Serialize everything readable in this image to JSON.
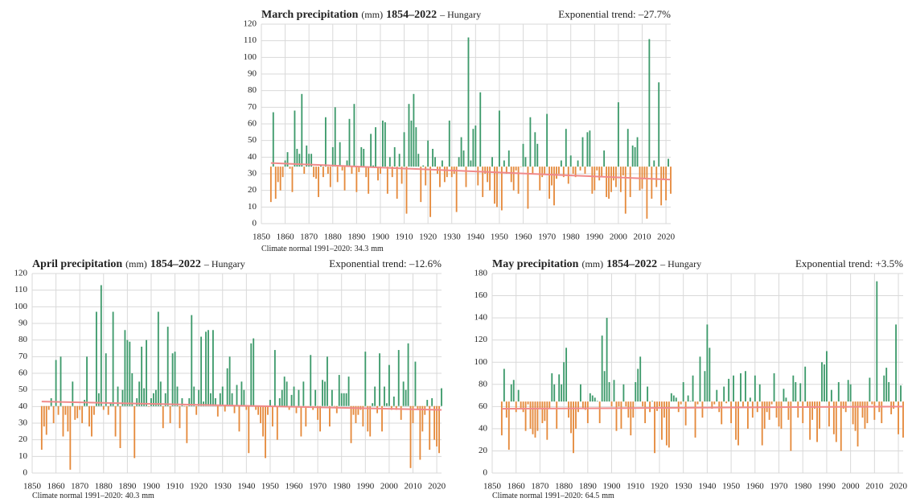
{
  "chart_data": [
    {
      "type": "bar",
      "title": "March precipitation",
      "unit": "(mm)",
      "period": "1854–2022",
      "region": "– Hungary",
      "trend_label": "Exponential trend: –27.7%",
      "trend": [
        36.5,
        26.5
      ],
      "normal_label": "Climate normal 1991–2020:",
      "normal": 34.3,
      "normal_unit": "mm",
      "above_color": "#3d9a6b",
      "below_color": "#e58a3c",
      "trend_color": "#f08a8a",
      "grid": true,
      "xlim": [
        1850,
        2022
      ],
      "xticks": [
        1850,
        1860,
        1870,
        1880,
        1890,
        1900,
        1910,
        1920,
        1930,
        1940,
        1950,
        1960,
        1970,
        1980,
        1990,
        2000,
        2010,
        2020
      ],
      "ylim": [
        0,
        120
      ],
      "yticks": [
        0,
        10,
        20,
        30,
        40,
        50,
        60,
        70,
        80,
        90,
        100,
        110,
        120
      ],
      "x": [
        1854,
        1855,
        1856,
        1857,
        1858,
        1859,
        1860,
        1861,
        1862,
        1863,
        1864,
        1865,
        1866,
        1867,
        1868,
        1869,
        1870,
        1871,
        1872,
        1873,
        1874,
        1875,
        1876,
        1877,
        1878,
        1879,
        1880,
        1881,
        1882,
        1883,
        1884,
        1885,
        1886,
        1887,
        1888,
        1889,
        1890,
        1891,
        1892,
        1893,
        1894,
        1895,
        1896,
        1897,
        1898,
        1899,
        1900,
        1901,
        1902,
        1903,
        1904,
        1905,
        1906,
        1907,
        1908,
        1909,
        1910,
        1911,
        1912,
        1913,
        1914,
        1915,
        1916,
        1917,
        1918,
        1919,
        1920,
        1921,
        1922,
        1923,
        1924,
        1925,
        1926,
        1927,
        1928,
        1929,
        1930,
        1931,
        1932,
        1933,
        1934,
        1935,
        1936,
        1937,
        1938,
        1939,
        1940,
        1941,
        1942,
        1943,
        1944,
        1945,
        1946,
        1947,
        1948,
        1949,
        1950,
        1951,
        1952,
        1953,
        1954,
        1955,
        1956,
        1957,
        1958,
        1959,
        1960,
        1961,
        1962,
        1963,
        1964,
        1965,
        1966,
        1967,
        1968,
        1969,
        1970,
        1971,
        1972,
        1973,
        1974,
        1975,
        1976,
        1977,
        1978,
        1979,
        1980,
        1981,
        1982,
        1983,
        1984,
        1985,
        1986,
        1987,
        1988,
        1989,
        1990,
        1991,
        1992,
        1993,
        1994,
        1995,
        1996,
        1997,
        1998,
        1999,
        2000,
        2001,
        2002,
        2003,
        2004,
        2005,
        2006,
        2007,
        2008,
        2009,
        2010,
        2011,
        2012,
        2013,
        2014,
        2015,
        2016,
        2017,
        2018,
        2019,
        2020,
        2021,
        2022
      ],
      "values": [
        13,
        67,
        15,
        25,
        20,
        28,
        38,
        43,
        33,
        19,
        68,
        45,
        42,
        78,
        30,
        47,
        42,
        42,
        28,
        27,
        16,
        35,
        28,
        64,
        30,
        22,
        46,
        70,
        25,
        49,
        32,
        20,
        38,
        63,
        30,
        72,
        19,
        31,
        46,
        45,
        28,
        18,
        54,
        35,
        58,
        26,
        30,
        62,
        61,
        18,
        40,
        28,
        46,
        15,
        42,
        24,
        55,
        6,
        72,
        62,
        78,
        58,
        42,
        13,
        35,
        23,
        50,
        4,
        45,
        40,
        30,
        22,
        38,
        25,
        28,
        62,
        28,
        30,
        7,
        40,
        52,
        44,
        22,
        112,
        38,
        57,
        59,
        23,
        79,
        16,
        30,
        25,
        20,
        40,
        12,
        10,
        68,
        8,
        38,
        30,
        44,
        25,
        20,
        32,
        18,
        34,
        48,
        40,
        9,
        64,
        30,
        55,
        48,
        20,
        28,
        30,
        66,
        15,
        23,
        11,
        27,
        30,
        38,
        28,
        57,
        24,
        41,
        30,
        28,
        38,
        32,
        52,
        30,
        55,
        56,
        18,
        20,
        32,
        26,
        28,
        44,
        16,
        15,
        19,
        26,
        22,
        73,
        19,
        29,
        6,
        57,
        16,
        47,
        46,
        52,
        20,
        21,
        27,
        3,
        111,
        15,
        38,
        22,
        85,
        11,
        27,
        14,
        39,
        18
      ]
    },
    {
      "type": "bar",
      "title": "April precipitation",
      "unit": "(mm)",
      "period": "1854–2022",
      "region": "– Hungary",
      "trend_label": "Exponential trend: –12.6%",
      "trend": [
        43,
        38
      ],
      "normal_label": "Climate normal 1991–2020:",
      "normal": 40.3,
      "normal_unit": "mm",
      "above_color": "#3d9a6b",
      "below_color": "#e58a3c",
      "trend_color": "#f08a8a",
      "grid": true,
      "xlim": [
        1850,
        2022
      ],
      "xticks": [
        1850,
        1860,
        1870,
        1880,
        1890,
        1900,
        1910,
        1920,
        1930,
        1940,
        1950,
        1960,
        1970,
        1980,
        1990,
        2000,
        2010,
        2020
      ],
      "ylim": [
        0,
        120
      ],
      "yticks": [
        0,
        10,
        20,
        30,
        40,
        50,
        60,
        70,
        80,
        90,
        100,
        110,
        120
      ],
      "x": [
        1854,
        1855,
        1856,
        1857,
        1858,
        1859,
        1860,
        1861,
        1862,
        1863,
        1864,
        1865,
        1866,
        1867,
        1868,
        1869,
        1870,
        1871,
        1872,
        1873,
        1874,
        1875,
        1876,
        1877,
        1878,
        1879,
        1880,
        1881,
        1882,
        1883,
        1884,
        1885,
        1886,
        1887,
        1888,
        1889,
        1890,
        1891,
        1892,
        1893,
        1894,
        1895,
        1896,
        1897,
        1898,
        1899,
        1900,
        1901,
        1902,
        1903,
        1904,
        1905,
        1906,
        1907,
        1908,
        1909,
        1910,
        1911,
        1912,
        1913,
        1914,
        1915,
        1916,
        1917,
        1918,
        1919,
        1920,
        1921,
        1922,
        1923,
        1924,
        1925,
        1926,
        1927,
        1928,
        1929,
        1930,
        1931,
        1932,
        1933,
        1934,
        1935,
        1936,
        1937,
        1938,
        1939,
        1940,
        1941,
        1942,
        1943,
        1944,
        1945,
        1946,
        1947,
        1948,
        1949,
        1950,
        1951,
        1952,
        1953,
        1954,
        1955,
        1956,
        1957,
        1958,
        1959,
        1960,
        1961,
        1962,
        1963,
        1964,
        1965,
        1966,
        1967,
        1968,
        1969,
        1970,
        1971,
        1972,
        1973,
        1974,
        1975,
        1976,
        1977,
        1978,
        1979,
        1980,
        1981,
        1982,
        1983,
        1984,
        1985,
        1986,
        1987,
        1988,
        1989,
        1990,
        1991,
        1992,
        1993,
        1994,
        1995,
        1996,
        1997,
        1998,
        1999,
        2000,
        2001,
        2002,
        2003,
        2004,
        2005,
        2006,
        2007,
        2008,
        2009,
        2010,
        2011,
        2012,
        2013,
        2014,
        2015,
        2016,
        2017,
        2018,
        2019,
        2020,
        2021,
        2022
      ],
      "values": [
        14,
        28,
        23,
        38,
        45,
        30,
        68,
        35,
        70,
        22,
        35,
        25,
        2,
        55,
        32,
        33,
        38,
        30,
        44,
        70,
        28,
        22,
        35,
        97,
        48,
        113,
        38,
        72,
        35,
        42,
        97,
        22,
        52,
        15,
        50,
        86,
        80,
        79,
        60,
        9,
        45,
        55,
        76,
        51,
        80,
        40,
        45,
        48,
        50,
        97,
        55,
        27,
        48,
        88,
        30,
        72,
        73,
        52,
        27,
        45,
        40,
        18,
        45,
        95,
        52,
        35,
        50,
        82,
        43,
        85,
        86,
        48,
        86,
        45,
        34,
        48,
        52,
        37,
        63,
        70,
        48,
        36,
        53,
        25,
        55,
        50,
        38,
        12,
        78,
        81,
        38,
        35,
        30,
        22,
        9,
        35,
        44,
        28,
        74,
        20,
        45,
        50,
        58,
        55,
        38,
        47,
        52,
        36,
        50,
        22,
        55,
        28,
        40,
        71,
        38,
        50,
        32,
        25,
        56,
        55,
        70,
        28,
        50,
        40,
        36,
        59,
        48,
        48,
        48,
        58,
        18,
        35,
        30,
        35,
        38,
        28,
        73,
        25,
        22,
        42,
        52,
        36,
        72,
        25,
        52,
        42,
        65,
        38,
        46,
        38,
        74,
        32,
        55,
        50,
        78,
        3,
        30,
        67,
        38,
        8,
        25,
        35,
        44,
        14,
        45,
        20,
        16,
        12,
        51
      ]
    },
    {
      "type": "bar",
      "title": "May precipitation",
      "unit": "(mm)",
      "period": "1854–2022",
      "region": "– Hungary",
      "trend_label": "Exponential trend: +3.5%",
      "trend": [
        58,
        60
      ],
      "normal_label": "Climate normal 1991–2020:",
      "normal": 64.5,
      "normal_unit": "mm",
      "above_color": "#3d9a6b",
      "below_color": "#e58a3c",
      "trend_color": "#f08a8a",
      "grid": true,
      "xlim": [
        1850,
        2022
      ],
      "xticks": [
        1850,
        1860,
        1870,
        1880,
        1890,
        1900,
        1910,
        1920,
        1930,
        1940,
        1950,
        1960,
        1970,
        1980,
        1990,
        2000,
        2010,
        2020
      ],
      "ylim": [
        0,
        180
      ],
      "yticks": [
        0,
        20,
        40,
        60,
        80,
        100,
        120,
        140,
        160,
        180
      ],
      "x": [
        1854,
        1855,
        1856,
        1857,
        1858,
        1859,
        1860,
        1861,
        1862,
        1863,
        1864,
        1865,
        1866,
        1867,
        1868,
        1869,
        1870,
        1871,
        1872,
        1873,
        1874,
        1875,
        1876,
        1877,
        1878,
        1879,
        1880,
        1881,
        1882,
        1883,
        1884,
        1885,
        1886,
        1887,
        1888,
        1889,
        1890,
        1891,
        1892,
        1893,
        1894,
        1895,
        1896,
        1897,
        1898,
        1899,
        1900,
        1901,
        1902,
        1903,
        1904,
        1905,
        1906,
        1907,
        1908,
        1909,
        1910,
        1911,
        1912,
        1913,
        1914,
        1915,
        1916,
        1917,
        1918,
        1919,
        1920,
        1921,
        1922,
        1923,
        1924,
        1925,
        1926,
        1927,
        1928,
        1929,
        1930,
        1931,
        1932,
        1933,
        1934,
        1935,
        1936,
        1937,
        1938,
        1939,
        1940,
        1941,
        1942,
        1943,
        1944,
        1945,
        1946,
        1947,
        1948,
        1949,
        1950,
        1951,
        1952,
        1953,
        1954,
        1955,
        1956,
        1957,
        1958,
        1959,
        1960,
        1961,
        1962,
        1963,
        1964,
        1965,
        1966,
        1967,
        1968,
        1969,
        1970,
        1971,
        1972,
        1973,
        1974,
        1975,
        1976,
        1977,
        1978,
        1979,
        1980,
        1981,
        1982,
        1983,
        1984,
        1985,
        1986,
        1987,
        1988,
        1989,
        1990,
        1991,
        1992,
        1993,
        1994,
        1995,
        1996,
        1997,
        1998,
        1999,
        2000,
        2001,
        2002,
        2003,
        2004,
        2005,
        2006,
        2007,
        2008,
        2009,
        2010,
        2011,
        2012,
        2013,
        2014,
        2015,
        2016,
        2017,
        2018,
        2019,
        2020,
        2021,
        2022
      ],
      "values": [
        34,
        94,
        50,
        21,
        80,
        84,
        55,
        75,
        58,
        55,
        38,
        62,
        40,
        35,
        32,
        38,
        58,
        45,
        47,
        30,
        58,
        90,
        80,
        40,
        89,
        80,
        100,
        113,
        50,
        36,
        18,
        40,
        55,
        80,
        58,
        57,
        45,
        72,
        70,
        68,
        65,
        45,
        124,
        92,
        140,
        82,
        60,
        84,
        38,
        60,
        40,
        80,
        60,
        50,
        34,
        50,
        82,
        94,
        105,
        60,
        45,
        78,
        55,
        65,
        18,
        56,
        60,
        30,
        50,
        25,
        23,
        72,
        70,
        68,
        55,
        62,
        82,
        43,
        70,
        65,
        88,
        32,
        62,
        105,
        50,
        92,
        134,
        113,
        58,
        62,
        75,
        55,
        44,
        78,
        63,
        85,
        45,
        88,
        30,
        25,
        90,
        60,
        92,
        40,
        68,
        50,
        88,
        55,
        80,
        25,
        40,
        55,
        48,
        62,
        90,
        50,
        42,
        40,
        76,
        68,
        48,
        20,
        88,
        82,
        50,
        81,
        45,
        96,
        60,
        30,
        48,
        58,
        28,
        40,
        100,
        98,
        110,
        42,
        75,
        35,
        28,
        82,
        20,
        58,
        55,
        84,
        80,
        44,
        38,
        24,
        60,
        50,
        40,
        45,
        86,
        62,
        48,
        173,
        55,
        45,
        88,
        95,
        82,
        53,
        58,
        134,
        35,
        79,
        32
      ]
    }
  ]
}
